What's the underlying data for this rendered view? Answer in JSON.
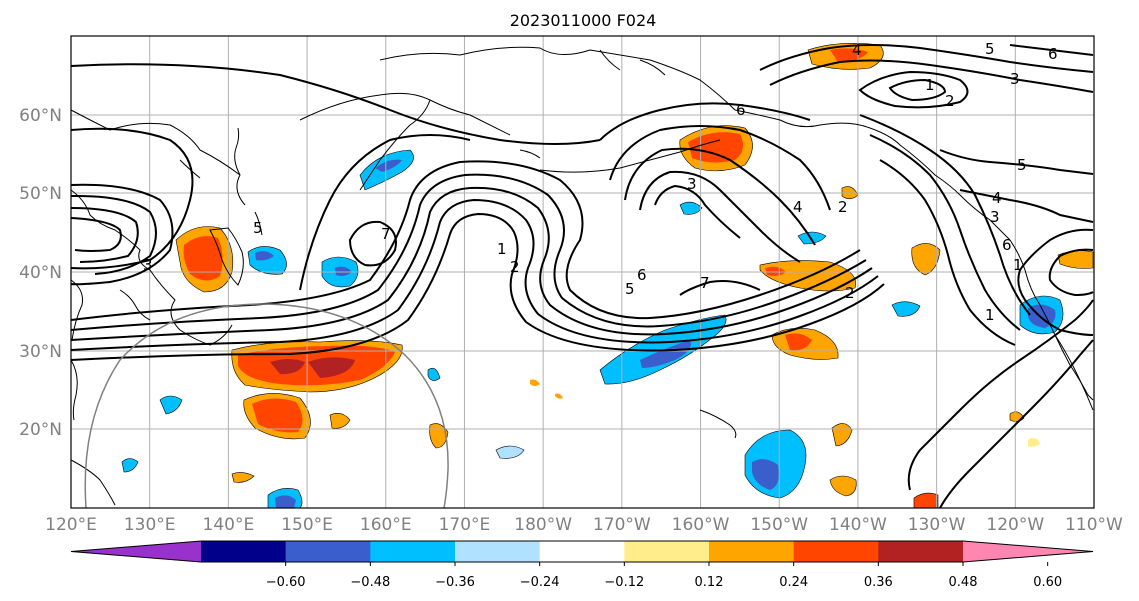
{
  "title": "2023011000 F024",
  "lat_labels": [
    "60°N",
    "50°N",
    "40°N",
    "30°N",
    "20°N"
  ],
  "lon_labels": [
    "120°E",
    "130°E",
    "140°E",
    "150°E",
    "160°E",
    "170°E",
    "180°W",
    "170°W",
    "160°W",
    "150°W",
    "140°W",
    "130°W",
    "120°W",
    "110°W"
  ],
  "colorbar": {
    "ticks": [
      "−0.60",
      "−0.48",
      "−0.36",
      "−0.24",
      "−0.12",
      "0.12",
      "0.24",
      "0.36",
      "0.48",
      "0.60"
    ],
    "colors": [
      "#9932cc",
      "#00008b",
      "#3a5fcd",
      "#00bfff",
      "#b0e2ff",
      "#ffffff",
      "#ffec8b",
      "#ffa500",
      "#ff4500",
      "#b22222",
      "#ff86b0"
    ]
  },
  "contour_labels": [
    "1",
    "2",
    "3",
    "4",
    "5",
    "6",
    "7",
    "1",
    "2",
    "3",
    "5",
    "6",
    "7",
    "1",
    "2",
    "3",
    "4",
    "5",
    "6",
    "1",
    "2",
    "3",
    "4",
    "5",
    "6"
  ],
  "colors": {
    "contour": "#000000",
    "grid": "#b0b0b0",
    "coast": "#000000",
    "circle": "#808080"
  }
}
